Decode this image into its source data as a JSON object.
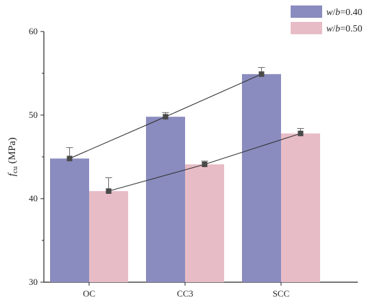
{
  "chart_data": {
    "type": "bar",
    "categories": [
      "OC",
      "CC3",
      "SCC"
    ],
    "series": [
      {
        "legend_var": "w/b",
        "legend_value": "=0.40",
        "color": "#8a8cbf",
        "values": [
          44.8,
          49.8,
          54.9
        ],
        "errors": [
          1.3,
          0.5,
          0.8
        ]
      },
      {
        "legend_var": "w/b",
        "legend_value": "=0.50",
        "color": "#e8bcc6",
        "values": [
          40.9,
          44.1,
          47.8
        ],
        "errors": [
          1.6,
          0.4,
          0.6
        ]
      }
    ],
    "ylabel_var": "f",
    "ylabel_sub": "cu",
    "ylabel_unit": " (MPa)",
    "ylim": [
      30,
      60
    ],
    "yticks": [
      30,
      40,
      50,
      60
    ],
    "grid": false,
    "legend_position": "top-right",
    "trend_lines": true,
    "marker_color": "#4a4a4a"
  }
}
